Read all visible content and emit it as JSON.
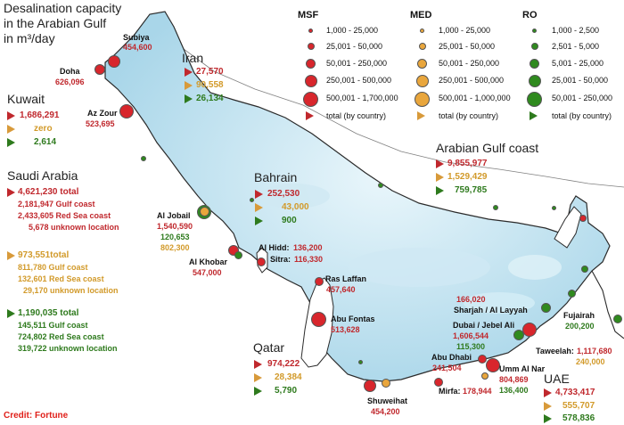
{
  "title_lines": [
    "Desalination capacity",
    "in the Arabian Gulf",
    "in m³/day"
  ],
  "credit": "Credit: Fortune",
  "colors": {
    "msf": "#d8262c",
    "med": "#e9a63c",
    "ro": "#2f8a1e",
    "water": "#a9d4e8",
    "land": "#ffffff"
  },
  "legend": {
    "msf": {
      "title": "MSF",
      "ranges": [
        "1,000 - 25,000",
        "25,001 - 50,000",
        "50,001 - 250,000",
        "250,001 - 500,000",
        "500,001 - 1,700,000"
      ],
      "total": "total (by country)"
    },
    "med": {
      "title": "MED",
      "ranges": [
        "1,000 - 25,000",
        "25,001 - 50,000",
        "50,001 - 250,000",
        "250,001 - 500,000",
        "500,001 - 1,000,000"
      ],
      "total": "total (by country)"
    },
    "ro": {
      "title": "RO",
      "ranges": [
        "1,000 - 2,500",
        "2,501 - 5,000",
        "5,001 - 25,000",
        "25,001 - 50,000",
        "50,001 - 250,000"
      ],
      "total": "total (by country)"
    }
  },
  "countries": {
    "kuwait": {
      "name": "Kuwait",
      "msf": "1,686,291",
      "med": "zero",
      "ro": "2,614"
    },
    "saudi": {
      "name": "Saudi Arabia",
      "msf_total": "4,621,230 total",
      "msf_gulf": "2,181,947 Gulf coast",
      "msf_red": "2,433,605 Red Sea coast",
      "msf_unknown": "5,678 unknown location",
      "med_total": "973,551total",
      "med_gulf": "811,780 Gulf coast",
      "med_red": "132,601 Red Sea coast",
      "med_unknown": "29,170 unknown location",
      "ro_total": "1,190,035 total",
      "ro_gulf": "145,511 Gulf coast",
      "ro_red": "724,802 Red Sea coast",
      "ro_unknown": "319,722 unknown location"
    },
    "iran": {
      "name": "Iran",
      "msf": "27,570",
      "med": "90,558",
      "ro": "26,134"
    },
    "bahrain": {
      "name": "Bahrain",
      "msf": "252,530",
      "med": "43,000",
      "ro": "900"
    },
    "qatar": {
      "name": "Qatar",
      "msf": "974,222",
      "med": "28,384",
      "ro": "5,790"
    },
    "uae": {
      "name": "UAE",
      "msf": "4,733,417",
      "med": "555,707",
      "ro": "578,836"
    },
    "gulf_coast": {
      "name": "Arabian Gulf coast",
      "msf": "9,855,977",
      "med": "1,529,429",
      "ro": "759,785"
    }
  },
  "sites": {
    "doha": {
      "name": "Doha",
      "v1": "626,096"
    },
    "subiya": {
      "name": "Subiya",
      "v1": "454,600"
    },
    "az_zour": {
      "name": "Az Zour",
      "v1": "523,695"
    },
    "al_jobail": {
      "name": "Al Jobail",
      "v1": "1,540,590",
      "v2": "120,653",
      "v3": "802,300"
    },
    "al_khobar": {
      "name": "Al Khobar",
      "v1": "547,000"
    },
    "al_hidd": {
      "name": "Al Hidd:",
      "v1": "136,200"
    },
    "sitra": {
      "name": "Sitra:",
      "v1": "116,330"
    },
    "ras_laffan": {
      "name": "Ras Laffan",
      "v1": "457,640"
    },
    "abu_fontas": {
      "name": "Abu Fontas",
      "v1": "513,628"
    },
    "shuweihat": {
      "name": "Shuweihat",
      "v1": "454,200"
    },
    "mirfa": {
      "name": "Mirfa:",
      "v1": "178,944"
    },
    "abu_dhabi": {
      "name": "Abu Dhabi",
      "v1": "241,504"
    },
    "umm_al_nar": {
      "name": "Umm Al Nar",
      "v1": "804,869",
      "v2": "136,400"
    },
    "taweelah": {
      "name": "Taweelah:",
      "v1": "1,117,680",
      "v2": "240,000"
    },
    "dubai": {
      "name": "Dubai / Jebel Ali",
      "v1": "1,606,544",
      "v2": "115,300"
    },
    "sharjah": {
      "name": "Sharjah / Al Layyah",
      "v1": "166,020"
    },
    "fujairah": {
      "name": "Fujairah",
      "v1": "200,200"
    }
  }
}
